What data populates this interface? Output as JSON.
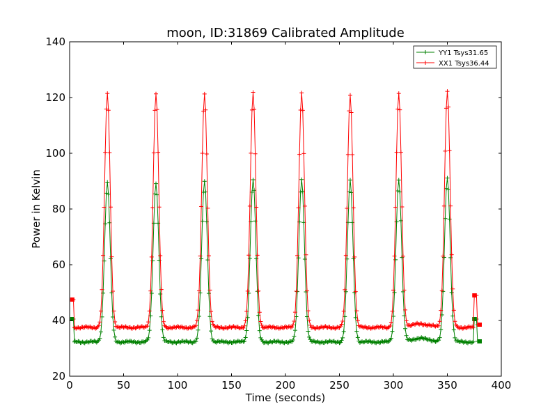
{
  "chart_data": {
    "type": "line",
    "title": "moon, ID:31869 Calibrated Amplitude",
    "xlabel": "Time (seconds)",
    "ylabel": "Power in Kelvin",
    "xlim": [
      0,
      400
    ],
    "ylim": [
      20,
      140
    ],
    "xticks": [
      0,
      50,
      100,
      150,
      200,
      250,
      300,
      350,
      400
    ],
    "yticks": [
      20,
      40,
      60,
      80,
      100,
      120,
      140
    ],
    "grid": false,
    "legend_position": "top-right",
    "peak_times": [
      35,
      80,
      125,
      170,
      215,
      260,
      305,
      350
    ],
    "series": [
      {
        "name": "YY1 Tsys31.65",
        "color": "#008000",
        "marker": "+",
        "start_value": 40.5,
        "baseline": 32.3,
        "peak_values": [
          89.5,
          89.5,
          90.0,
          90.5,
          90.5,
          90.0,
          90.5,
          91.5
        ],
        "end_values": [
          40.5,
          32.5
        ]
      },
      {
        "name": "XX1 Tsys36.44",
        "color": "#ff0000",
        "marker": "+",
        "start_value": 47.5,
        "baseline": 37.5,
        "peak_values": [
          121.5,
          121.5,
          121.5,
          121.5,
          121.5,
          121.0,
          121.5,
          122.5
        ],
        "end_values": [
          49.0,
          38.5
        ]
      }
    ]
  }
}
